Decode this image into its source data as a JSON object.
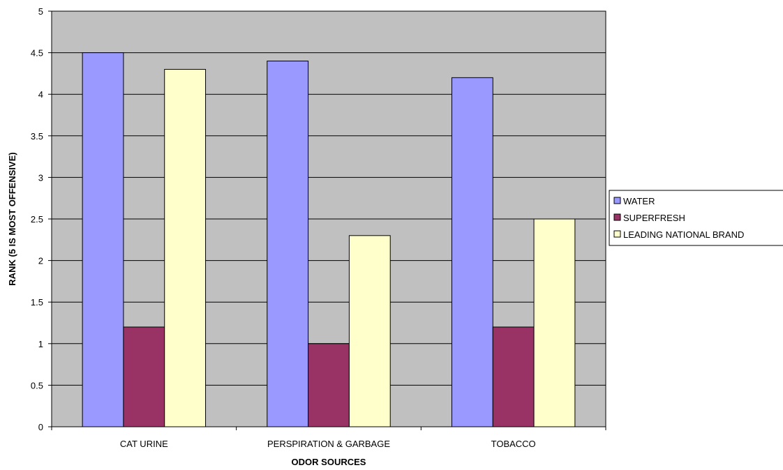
{
  "chart_data": {
    "type": "bar",
    "title": "",
    "xlabel": "ODOR SOURCES",
    "ylabel": "RANK (5 IS MOST OFFENSIVE)",
    "categories": [
      "CAT URINE",
      "PERSPIRATION & GARBAGE",
      "TOBACCO"
    ],
    "series": [
      {
        "name": "WATER",
        "values": [
          4.5,
          4.4,
          4.2
        ],
        "color": "#9999ff"
      },
      {
        "name": "SUPERFRESH",
        "values": [
          1.2,
          1.0,
          1.2
        ],
        "color": "#993366"
      },
      {
        "name": "LEADING NATIONAL BRAND",
        "values": [
          4.3,
          2.3,
          2.5
        ],
        "color": "#ffffcc"
      }
    ],
    "ylim": [
      0,
      5
    ],
    "yticks": [
      "0",
      "0.5",
      "1",
      "1.5",
      "2",
      "2.5",
      "3",
      "3.5",
      "4",
      "4.5",
      "5"
    ],
    "grid": true,
    "plot_background": "#c0c0c0",
    "legend_position": "right"
  }
}
